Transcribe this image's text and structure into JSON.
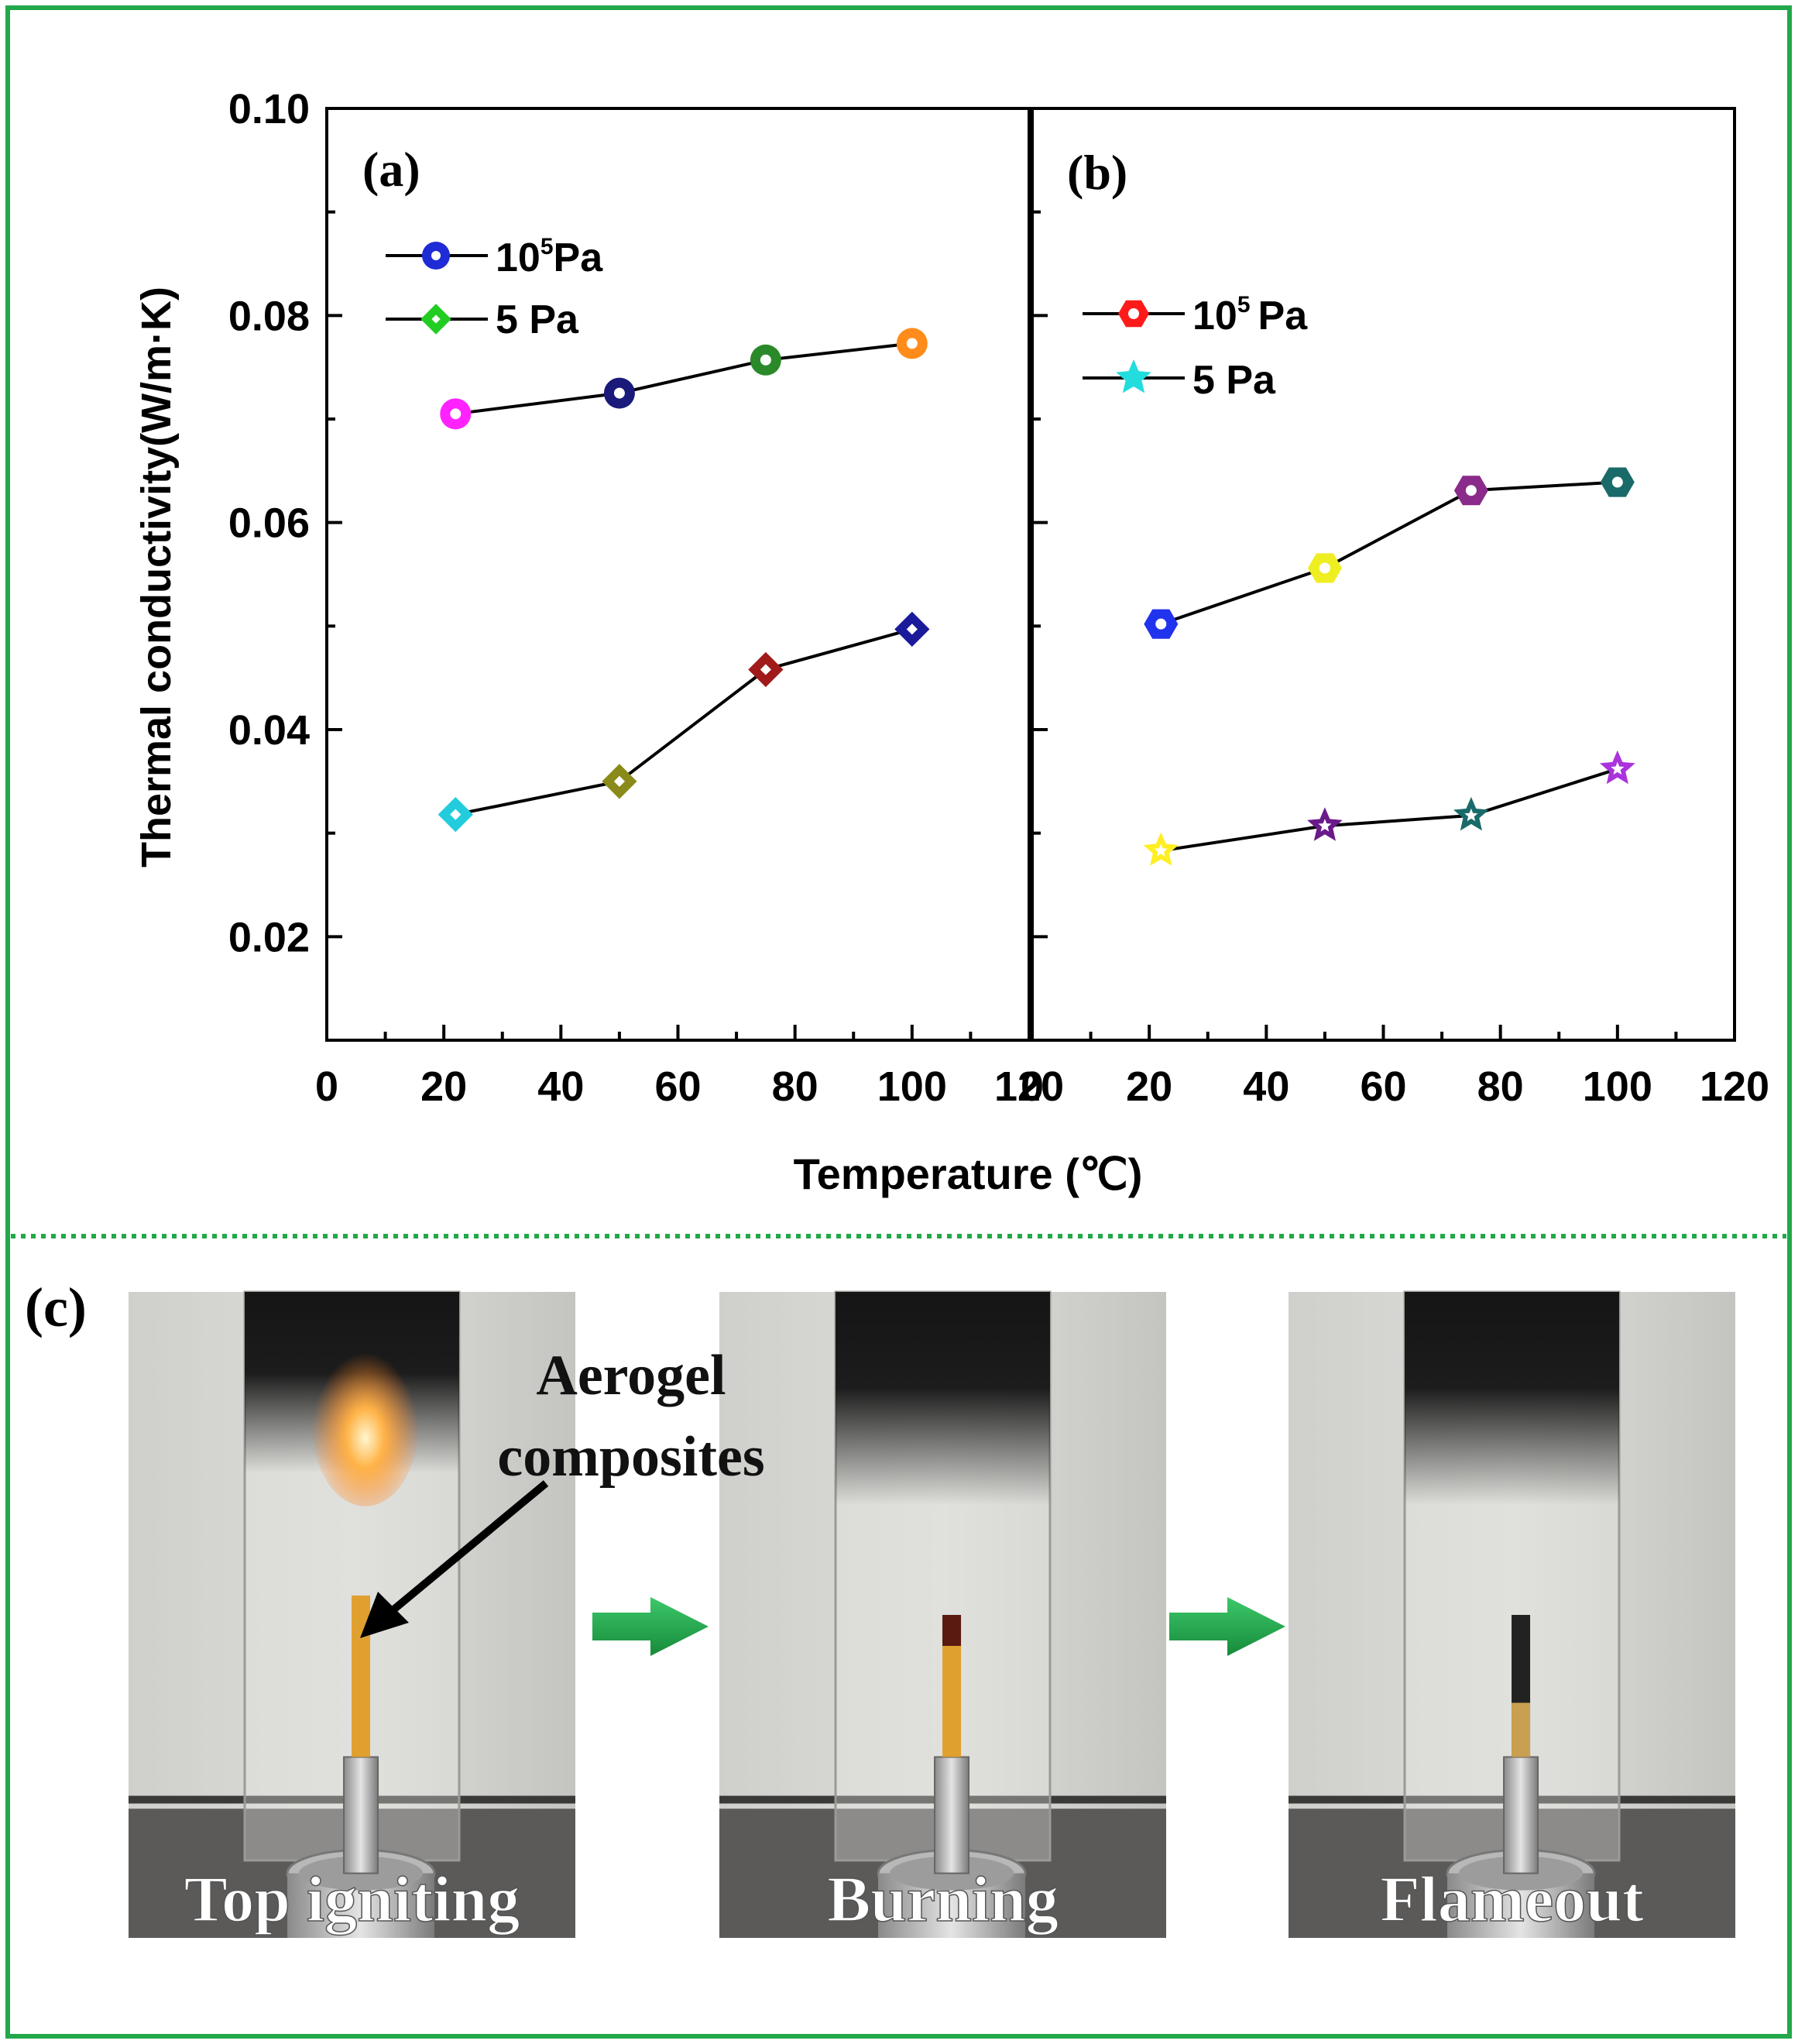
{
  "colors": {
    "frame": "#22a84a",
    "arrow": "#22a84a",
    "line": "#000000"
  },
  "shared_xlabel": "Temperature (℃)",
  "chart_data": [
    {
      "type": "line",
      "panel_label": "(a)",
      "xlabel": "Temperature (℃)",
      "ylabel": "Thermal conductivity(W/m·K)",
      "xlim": [
        0,
        120
      ],
      "ylim": [
        0.01,
        0.1
      ],
      "xticks": [
        "0",
        "20",
        "40",
        "60",
        "80",
        "100",
        "120"
      ],
      "yticks": [
        "0.02",
        "0.04",
        "0.06",
        "0.08",
        "0.10"
      ],
      "legend": [
        {
          "base": "10",
          "sup": "5",
          "unit": "Pa",
          "marker": "circle",
          "color": "#1f2bd6"
        },
        {
          "base": "5 Pa",
          "sup": "",
          "unit": "",
          "marker": "diamond",
          "color": "#22cc22"
        }
      ],
      "series": [
        {
          "name": "10^5 Pa",
          "x": [
            22,
            50,
            75,
            100
          ],
          "values": [
            0.0705,
            0.0725,
            0.0757,
            0.0773
          ],
          "marker": "circle",
          "colors": [
            "#ff22ff",
            "#1a1a7a",
            "#2a8a2a",
            "#ff8c1a"
          ]
        },
        {
          "name": "5 Pa",
          "x": [
            22,
            50,
            75,
            100
          ],
          "values": [
            0.0318,
            0.035,
            0.0458,
            0.0497
          ],
          "marker": "diamond",
          "colors": [
            "#22ccdd",
            "#8a8a1a",
            "#a01a1a",
            "#1a1a9a"
          ]
        }
      ]
    },
    {
      "type": "line",
      "panel_label": "(b)",
      "xlabel": "Temperature (℃)",
      "xlim": [
        0,
        120
      ],
      "ylim": [
        0.01,
        0.1
      ],
      "xticks": [
        "0",
        "20",
        "40",
        "60",
        "80",
        "100",
        "120"
      ],
      "legend": [
        {
          "base": "10",
          "sup": "5",
          "unit": "Pa",
          "marker": "hexagon",
          "color": "#ff1a1a"
        },
        {
          "base": "5 Pa",
          "sup": "",
          "unit": "",
          "marker": "star",
          "color": "#22dddd"
        }
      ],
      "series": [
        {
          "name": "10^5 Pa",
          "x": [
            22,
            50,
            75,
            100
          ],
          "values": [
            0.0502,
            0.0556,
            0.0631,
            0.0639
          ],
          "marker": "hexagon",
          "colors": [
            "#2233ee",
            "#eeee22",
            "#8a2a8a",
            "#1a6a6a"
          ]
        },
        {
          "name": "5 Pa",
          "x": [
            22,
            50,
            75,
            100
          ],
          "values": [
            0.0283,
            0.0307,
            0.0317,
            0.0362
          ],
          "marker": "star",
          "colors": [
            "#ffee22",
            "#6a1a8a",
            "#1a6a6a",
            "#aa33dd"
          ]
        }
      ]
    }
  ],
  "photos": {
    "panel_label": "(c)",
    "annotation_line1": "Aerogel",
    "annotation_line2": "composites",
    "items": [
      {
        "label": "Top igniting"
      },
      {
        "label": "Burning"
      },
      {
        "label": "Flameout"
      }
    ]
  }
}
